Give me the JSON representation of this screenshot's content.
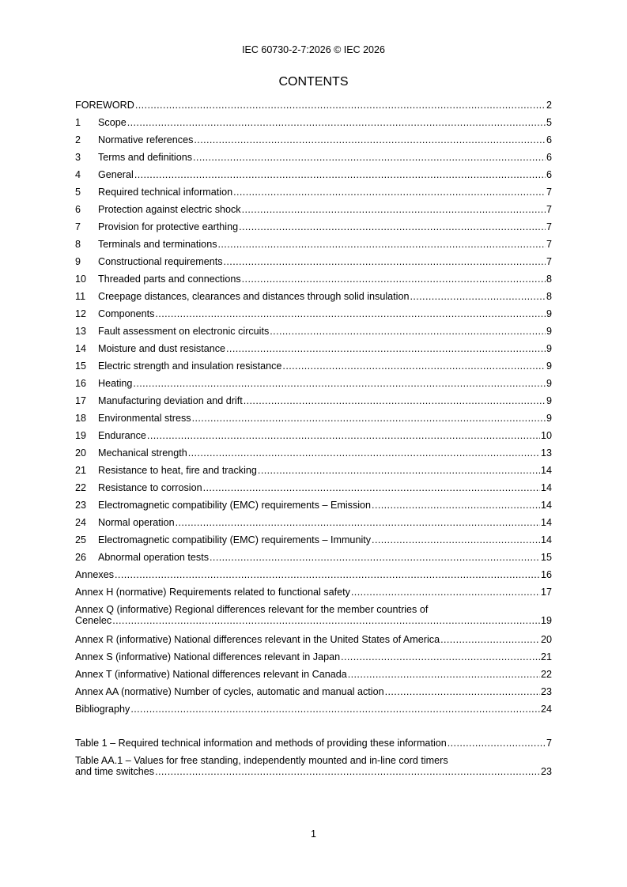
{
  "header": "IEC 60730-2-7:2026 © IEC 2026",
  "title": "CONTENTS",
  "entries": [
    {
      "num": "",
      "label": "FOREWORD",
      "page": "2"
    },
    {
      "num": "1",
      "label": "Scope",
      "page": "5"
    },
    {
      "num": "2",
      "label": "Normative references ",
      "page": "6"
    },
    {
      "num": "3",
      "label": "Terms and definitions ",
      "page": "6"
    },
    {
      "num": "4",
      "label": "General ",
      "page": "6"
    },
    {
      "num": "5",
      "label": "Required technical information ",
      "page": "7"
    },
    {
      "num": "6",
      "label": "Protection against electric shock ",
      "page": "7"
    },
    {
      "num": "7",
      "label": "Provision for protective earthing ",
      "page": "7"
    },
    {
      "num": "8",
      "label": "Terminals and terminations",
      "page": "7"
    },
    {
      "num": "9",
      "label": "Constructional requirements ",
      "page": "7"
    },
    {
      "num": "10",
      "label": "Threaded parts and connections",
      "page": "8"
    },
    {
      "num": "11",
      "label": "Creepage distances, clearances and distances through solid insulation",
      "page": "8"
    },
    {
      "num": "12",
      "label": "Components ",
      "page": "9"
    },
    {
      "num": "13",
      "label": "Fault assessment on electronic circuits ",
      "page": "9"
    },
    {
      "num": "14",
      "label": "Moisture and dust resistance ",
      "page": "9"
    },
    {
      "num": "15",
      "label": "Electric strength and insulation resistance",
      "page": "9"
    },
    {
      "num": "16",
      "label": "Heating",
      "page": "9"
    },
    {
      "num": "17",
      "label": "Manufacturing deviation and drift",
      "page": "9"
    },
    {
      "num": "18",
      "label": "Environmental stress ",
      "page": "9"
    },
    {
      "num": "19",
      "label": "Endurance",
      "page": "10"
    },
    {
      "num": "20",
      "label": "Mechanical strength ",
      "page": "13"
    },
    {
      "num": "21",
      "label": "Resistance to heat, fire and tracking",
      "page": "14"
    },
    {
      "num": "22",
      "label": "Resistance to corrosion ",
      "page": "14"
    },
    {
      "num": "23",
      "label": "Electromagnetic compatibility (EMC) requirements – Emission ",
      "page": "14"
    },
    {
      "num": "24",
      "label": "Normal operation",
      "page": "14"
    },
    {
      "num": "25",
      "label": "Electromagnetic compatibility (EMC) requirements – Immunity ",
      "page": "14"
    },
    {
      "num": "26",
      "label": "Abnormal operation tests",
      "page": "15"
    }
  ],
  "annexes": [
    {
      "label": "Annexes ",
      "page": "16"
    },
    {
      "label": "Annex H (normative)  Requirements related to functional safety ",
      "page": "17"
    },
    {
      "label_line1": "Annex Q (informative)  Regional differences relevant for the member countries of",
      "label": "Cenelec ",
      "page": "19"
    },
    {
      "label": "Annex R (informative)  National differences relevant in the United States of America",
      "page": "20"
    },
    {
      "label": "Annex S (informative)  National differences relevant in Japan",
      "page": "21"
    },
    {
      "label": "Annex T (informative)  National differences relevant in Canada ",
      "page": "22"
    },
    {
      "label": "Annex AA (normative)  Number of cycles, automatic and manual action",
      "page": "23"
    },
    {
      "label": "Bibliography",
      "page": "24"
    }
  ],
  "tables": [
    {
      "label": "Table 1 – Required technical information and methods of providing these information ",
      "page": "7"
    },
    {
      "label_line1": "Table AA.1 – Values for free standing, independently mounted and in-line cord timers",
      "label": "and time switches ",
      "page": "23"
    }
  ],
  "page_number": "1"
}
